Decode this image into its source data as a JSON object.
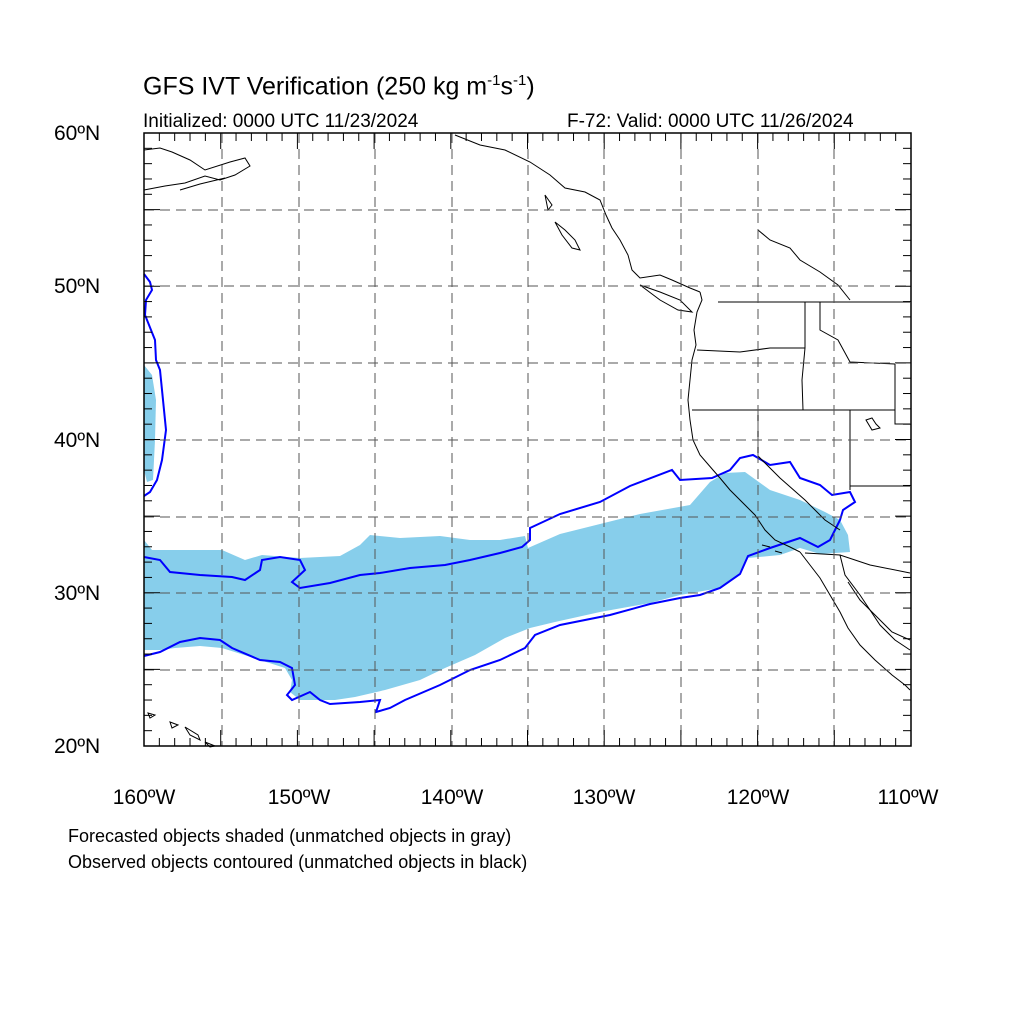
{
  "title": {
    "prefix": "GFS IVT Verification (250 kg m",
    "sup1": "-1",
    "mid": "s",
    "sup2": "-1",
    "suffix": ")"
  },
  "initialized": "Initialized: 0000 UTC 11/23/2024",
  "valid": "F-72: Valid: 0000 UTC 11/26/2024",
  "lat_labels": [
    "60ºN",
    "50ºN",
    "40ºN",
    "30ºN",
    "20ºN"
  ],
  "lon_labels": [
    "160ºW",
    "150ºW",
    "140ºW",
    "130ºW",
    "120ºW",
    "110ºW"
  ],
  "notes": {
    "forecast": "Forecasted objects shaded (unmatched objects in gray)",
    "observed": "Observed objects contoured (unmatched objects in black)"
  },
  "colors": {
    "forecast_fill": "#87ceeb",
    "observed_contour": "#0000ff",
    "coastline": "#000000",
    "grid": "#555555"
  },
  "map": {
    "extent_lon": [
      -160,
      -110
    ],
    "extent_lat": [
      20,
      60
    ],
    "grid_lon_step": 5,
    "grid_lat_step": 5
  }
}
